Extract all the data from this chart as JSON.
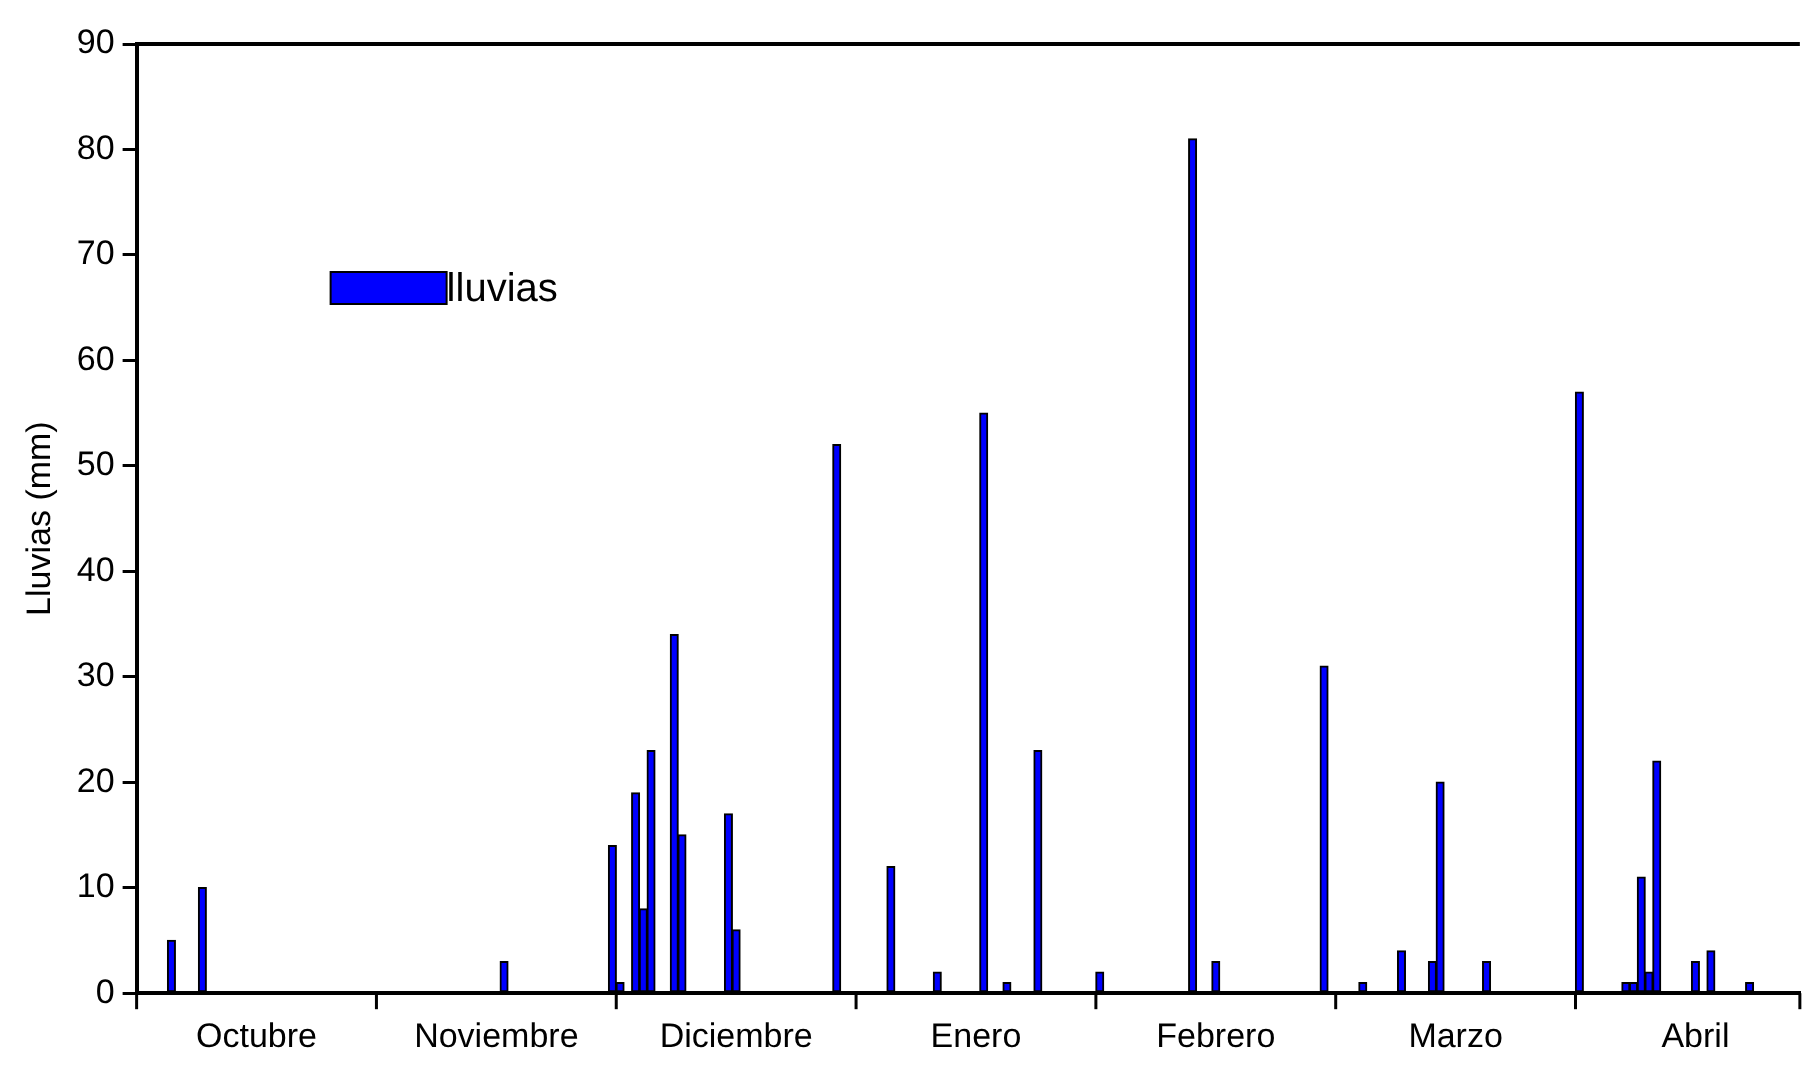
{
  "chart_data": {
    "type": "bar",
    "ylabel": "Lluvias (mm)",
    "categories": [
      null,
      null,
      null,
      null,
      null,
      null,
      null,
      null,
      null,
      null,
      null,
      null,
      null,
      null,
      null,
      "Octubre",
      null,
      null,
      null,
      null,
      null,
      null,
      null,
      null,
      null,
      null,
      null,
      null,
      null,
      null,
      null,
      null,
      null,
      null,
      null,
      null,
      null,
      null,
      null,
      null,
      null,
      null,
      null,
      null,
      null,
      null,
      "Noviembre",
      null,
      null,
      null,
      null,
      null,
      null,
      null,
      null,
      null,
      null,
      null,
      null,
      null,
      null,
      null,
      null,
      null,
      null,
      null,
      null,
      null,
      null,
      null,
      null,
      null,
      null,
      null,
      null,
      null,
      null,
      "Diciembre",
      null,
      null,
      null,
      null,
      null,
      null,
      null,
      null,
      null,
      null,
      null,
      null,
      null,
      null,
      null,
      null,
      null,
      null,
      null,
      null,
      null,
      null,
      null,
      null,
      null,
      null,
      null,
      null,
      null,
      null,
      "Enero",
      null,
      null,
      null,
      null,
      null,
      null,
      null,
      null,
      null,
      null,
      null,
      null,
      null,
      null,
      null,
      null,
      null,
      null,
      null,
      null,
      null,
      null,
      null,
      null,
      null,
      null,
      null,
      null,
      null,
      null,
      "Febrero",
      null,
      null,
      null,
      null,
      null,
      null,
      null,
      null,
      null,
      null,
      null,
      null,
      null,
      null,
      null,
      null,
      null,
      null,
      null,
      null,
      null,
      null,
      null,
      null,
      null,
      null,
      null,
      null,
      null,
      null,
      "Marzo",
      null,
      null,
      null,
      null,
      null,
      null,
      null,
      null,
      null,
      null,
      null,
      null,
      null,
      null,
      null,
      null,
      null,
      null,
      null,
      null,
      null,
      null,
      null,
      null,
      null,
      null,
      null,
      null,
      null,
      null,
      "Abril",
      null,
      null,
      null,
      null,
      null,
      null,
      null,
      null,
      null,
      null,
      null,
      null,
      null
    ],
    "series": [
      {
        "name": "lluvias",
        "color": "#0000ff",
        "values": [
          null,
          null,
          null,
          null,
          5,
          null,
          null,
          null,
          10,
          null,
          null,
          null,
          null,
          null,
          null,
          null,
          null,
          null,
          null,
          null,
          null,
          null,
          null,
          null,
          null,
          null,
          null,
          null,
          null,
          null,
          null,
          null,
          null,
          null,
          null,
          null,
          null,
          null,
          null,
          null,
          null,
          null,
          null,
          null,
          null,
          null,
          null,
          3,
          null,
          null,
          null,
          null,
          null,
          null,
          null,
          null,
          null,
          null,
          null,
          null,
          null,
          14,
          1,
          null,
          19,
          8,
          23,
          null,
          null,
          34,
          15,
          null,
          null,
          null,
          null,
          null,
          17,
          6,
          null,
          null,
          null,
          null,
          null,
          null,
          null,
          null,
          null,
          null,
          null,
          null,
          52,
          null,
          null,
          null,
          null,
          null,
          null,
          12,
          null,
          null,
          null,
          null,
          null,
          2,
          null,
          null,
          null,
          null,
          null,
          55,
          null,
          null,
          1,
          null,
          null,
          null,
          23,
          null,
          null,
          null,
          null,
          null,
          null,
          null,
          2,
          null,
          null,
          null,
          null,
          null,
          null,
          null,
          null,
          null,
          null,
          null,
          81,
          null,
          null,
          3,
          null,
          null,
          null,
          null,
          null,
          null,
          null,
          null,
          null,
          null,
          null,
          null,
          null,
          31,
          null,
          null,
          null,
          null,
          1,
          null,
          null,
          null,
          null,
          4,
          null,
          null,
          null,
          3,
          20,
          null,
          null,
          null,
          null,
          null,
          3,
          null,
          null,
          null,
          null,
          null,
          null,
          null,
          null,
          null,
          null,
          null,
          57,
          null,
          null,
          null,
          null,
          null,
          1,
          1,
          11,
          2,
          22,
          null,
          null,
          null,
          null,
          3,
          null,
          4,
          null,
          null,
          null,
          null,
          1,
          null,
          null,
          null,
          null,
          null,
          null
        ]
      }
    ],
    "ylim": [
      0,
      90
    ],
    "yticks": [
      0,
      10,
      20,
      30,
      40,
      50,
      60,
      70,
      80,
      90
    ],
    "grid": false,
    "legend": "top left"
  }
}
